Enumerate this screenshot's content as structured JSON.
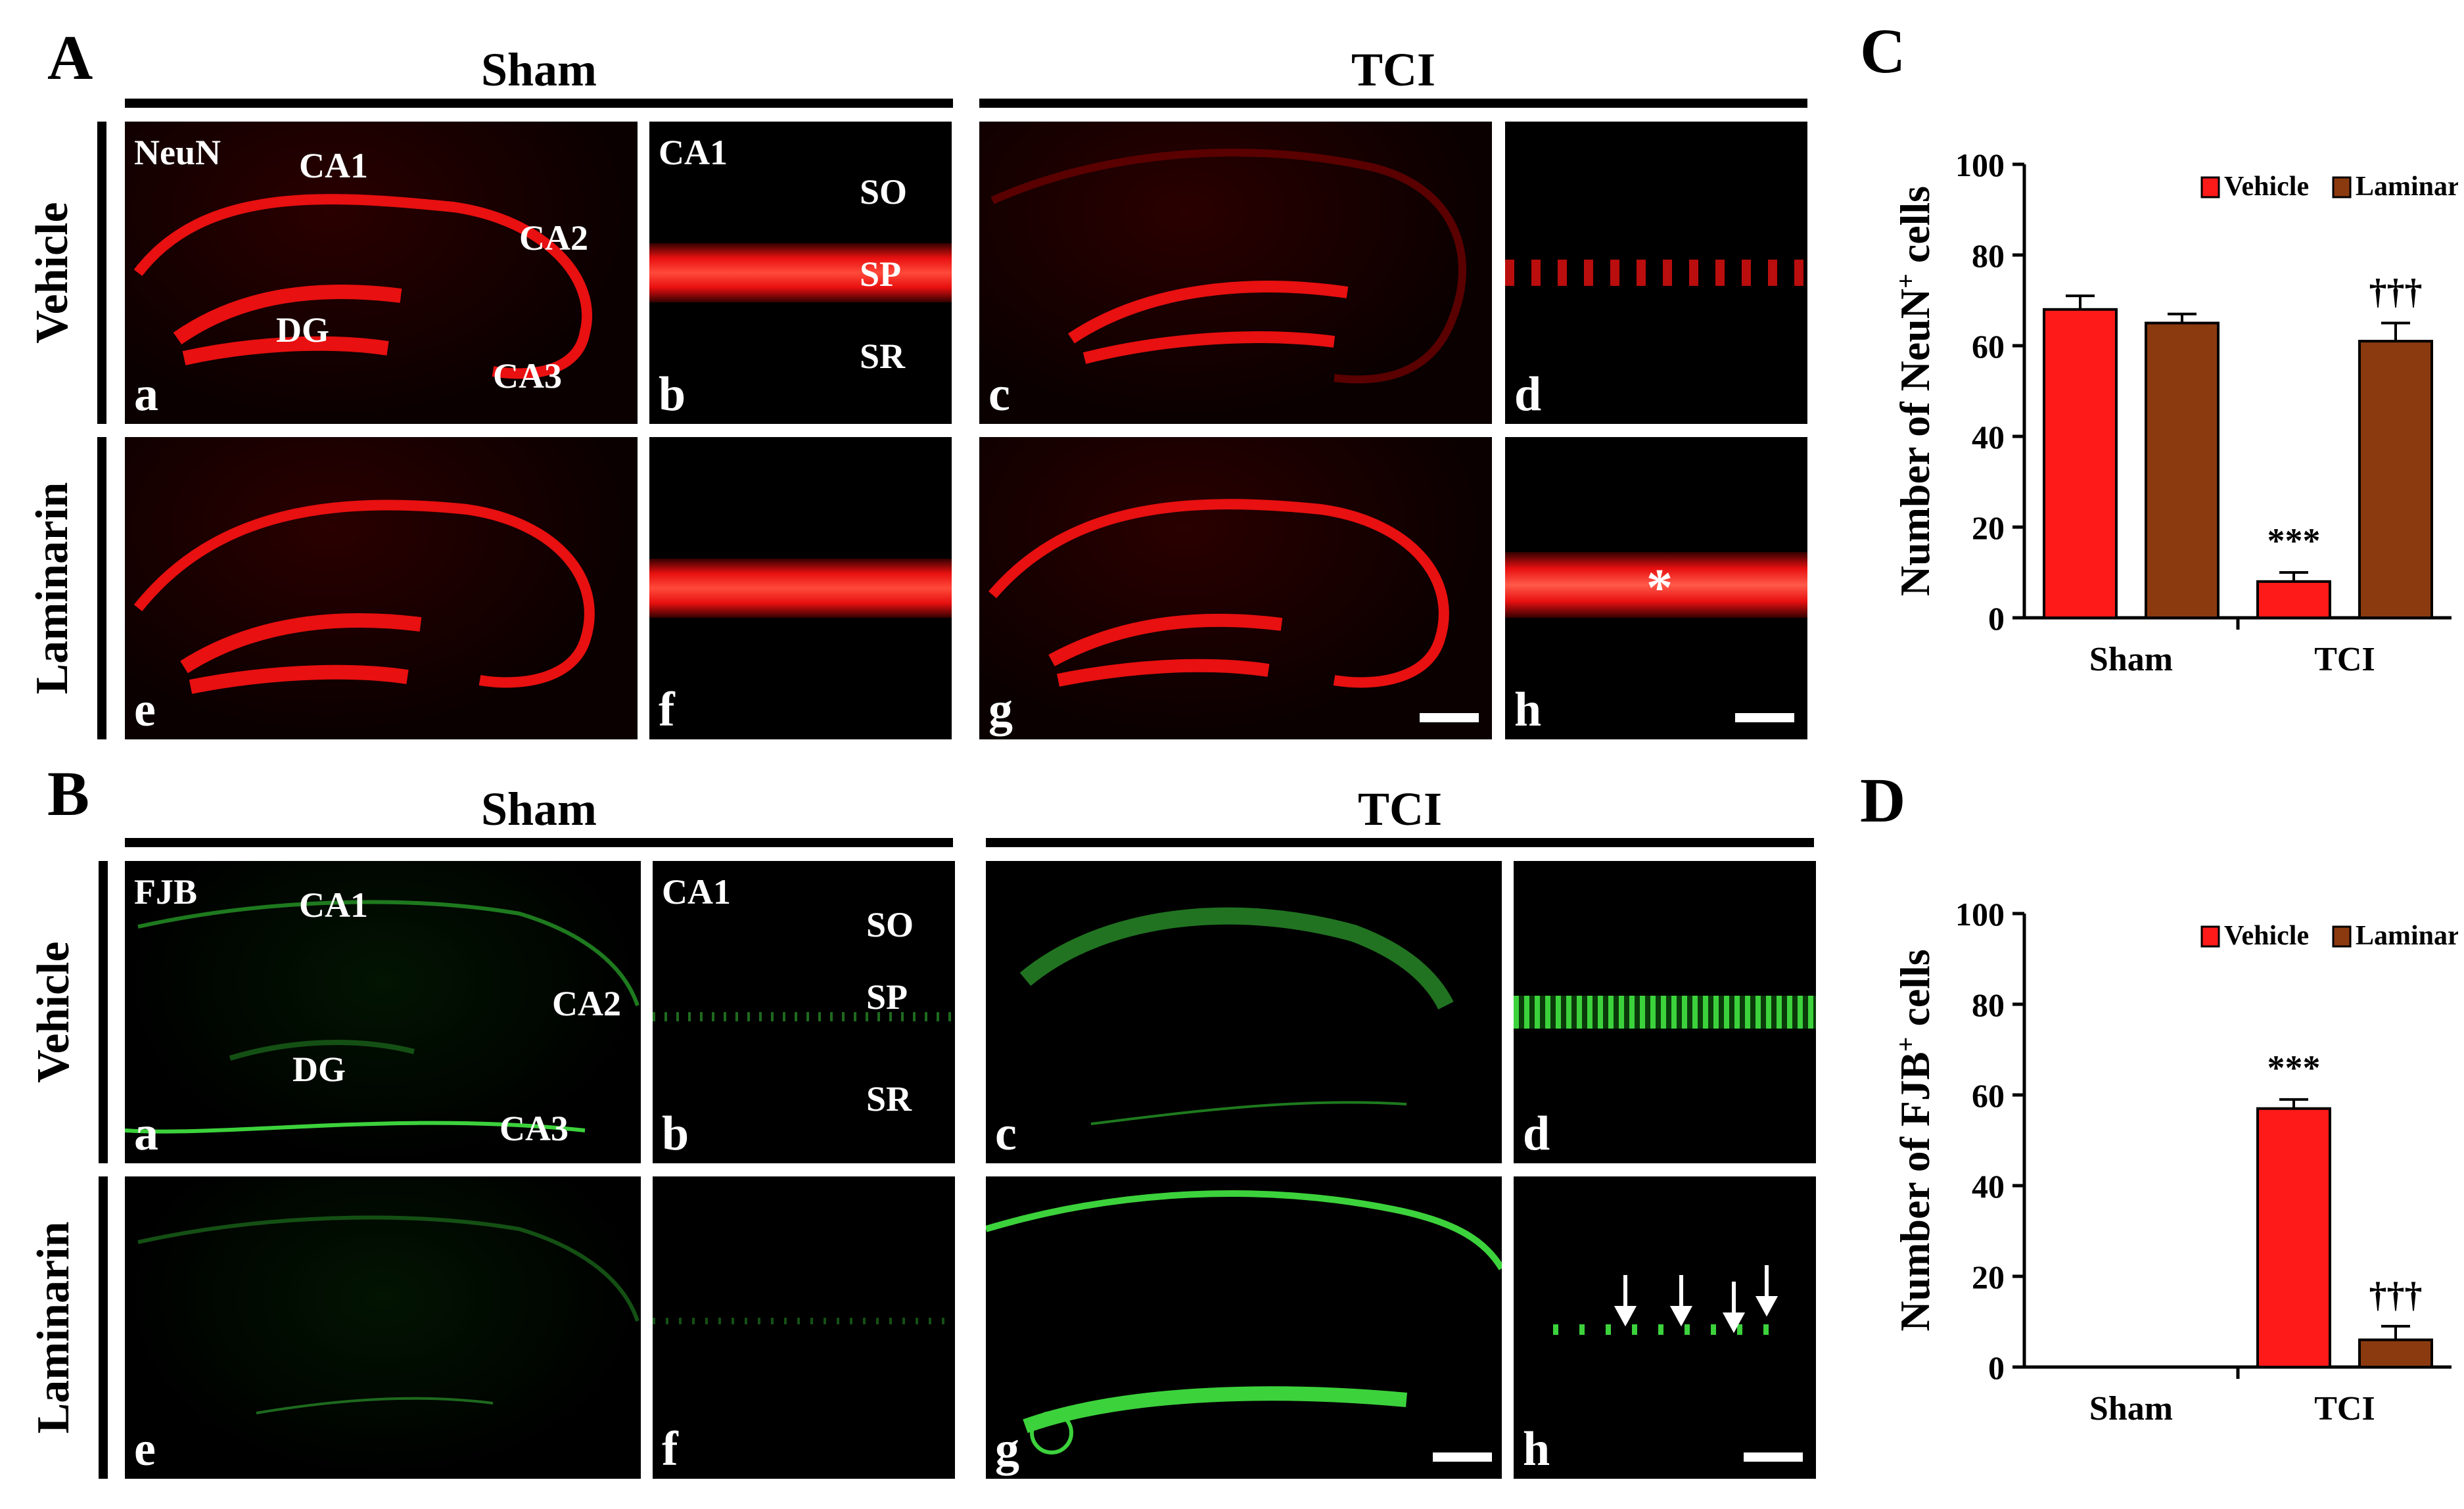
{
  "panelA": {
    "letter": "A",
    "group_left": "Sham",
    "group_right": "TCI",
    "row_top": "Vehicle",
    "row_bottom": "Laminarin",
    "stain": "NeuN",
    "region_labels": {
      "ca1": "CA1",
      "ca2": "CA2",
      "ca3": "CA3",
      "dg": "DG"
    },
    "zoom_labels": {
      "title": "CA1",
      "so": "SO",
      "sp": "SP",
      "sr": "SR"
    },
    "sub": {
      "a": "a",
      "b": "b",
      "c": "c",
      "d": "d",
      "e": "e",
      "f": "f",
      "g": "g",
      "h": "h"
    },
    "asterisk": "*"
  },
  "panelB": {
    "letter": "B",
    "group_left": "Sham",
    "group_right": "TCI",
    "row_top": "Vehicle",
    "row_bottom": "Laminarin",
    "stain": "FJB",
    "region_labels": {
      "ca1": "CA1",
      "ca2": "CA2",
      "ca3": "CA3",
      "dg": "DG"
    },
    "zoom_labels": {
      "title": "CA1",
      "so": "SO",
      "sp": "SP",
      "sr": "SR"
    },
    "sub": {
      "a": "a",
      "b": "b",
      "c": "c",
      "d": "d",
      "e": "e",
      "f": "f",
      "g": "g",
      "h": "h"
    }
  },
  "colors": {
    "vehicle": "#ff1a1a",
    "laminarin": "#8b3a0f",
    "neun": "#e81010",
    "fjb": "#3cd23c"
  },
  "chart_data": [
    {
      "letter": "C",
      "type": "bar",
      "ylabel_main": "Number of NeuN",
      "ylabel_sup": "+",
      "ylabel_tail": " cells",
      "ylim": [
        0,
        100
      ],
      "yticks": [
        "0",
        "20",
        "40",
        "60",
        "80",
        "100"
      ],
      "categories": [
        "Sham",
        "TCI"
      ],
      "legend": [
        "Vehicle",
        "Laminarin"
      ],
      "series": [
        {
          "name": "Vehicle",
          "values": [
            68,
            8
          ],
          "errors": [
            3,
            2
          ]
        },
        {
          "name": "Laminarin",
          "values": [
            65,
            61
          ],
          "errors": [
            2,
            4
          ]
        }
      ],
      "annotations": [
        {
          "category": "TCI",
          "series": "Vehicle",
          "text": "***"
        },
        {
          "category": "TCI",
          "series": "Laminarin",
          "text": "†††"
        }
      ]
    },
    {
      "letter": "D",
      "type": "bar",
      "ylabel_main": "Number of FJB",
      "ylabel_sup": "+",
      "ylabel_tail": " cells",
      "ylim": [
        0,
        100
      ],
      "yticks": [
        "0",
        "20",
        "40",
        "60",
        "80",
        "100"
      ],
      "categories": [
        "Sham",
        "TCI"
      ],
      "legend": [
        "Vehicle",
        "Laminarin"
      ],
      "series": [
        {
          "name": "Vehicle",
          "values": [
            0,
            57
          ],
          "errors": [
            0,
            2
          ]
        },
        {
          "name": "Laminarin",
          "values": [
            0,
            6
          ],
          "errors": [
            0,
            3
          ]
        }
      ],
      "annotations": [
        {
          "category": "TCI",
          "series": "Vehicle",
          "text": "***"
        },
        {
          "category": "TCI",
          "series": "Laminarin",
          "text": "†††"
        }
      ]
    }
  ]
}
